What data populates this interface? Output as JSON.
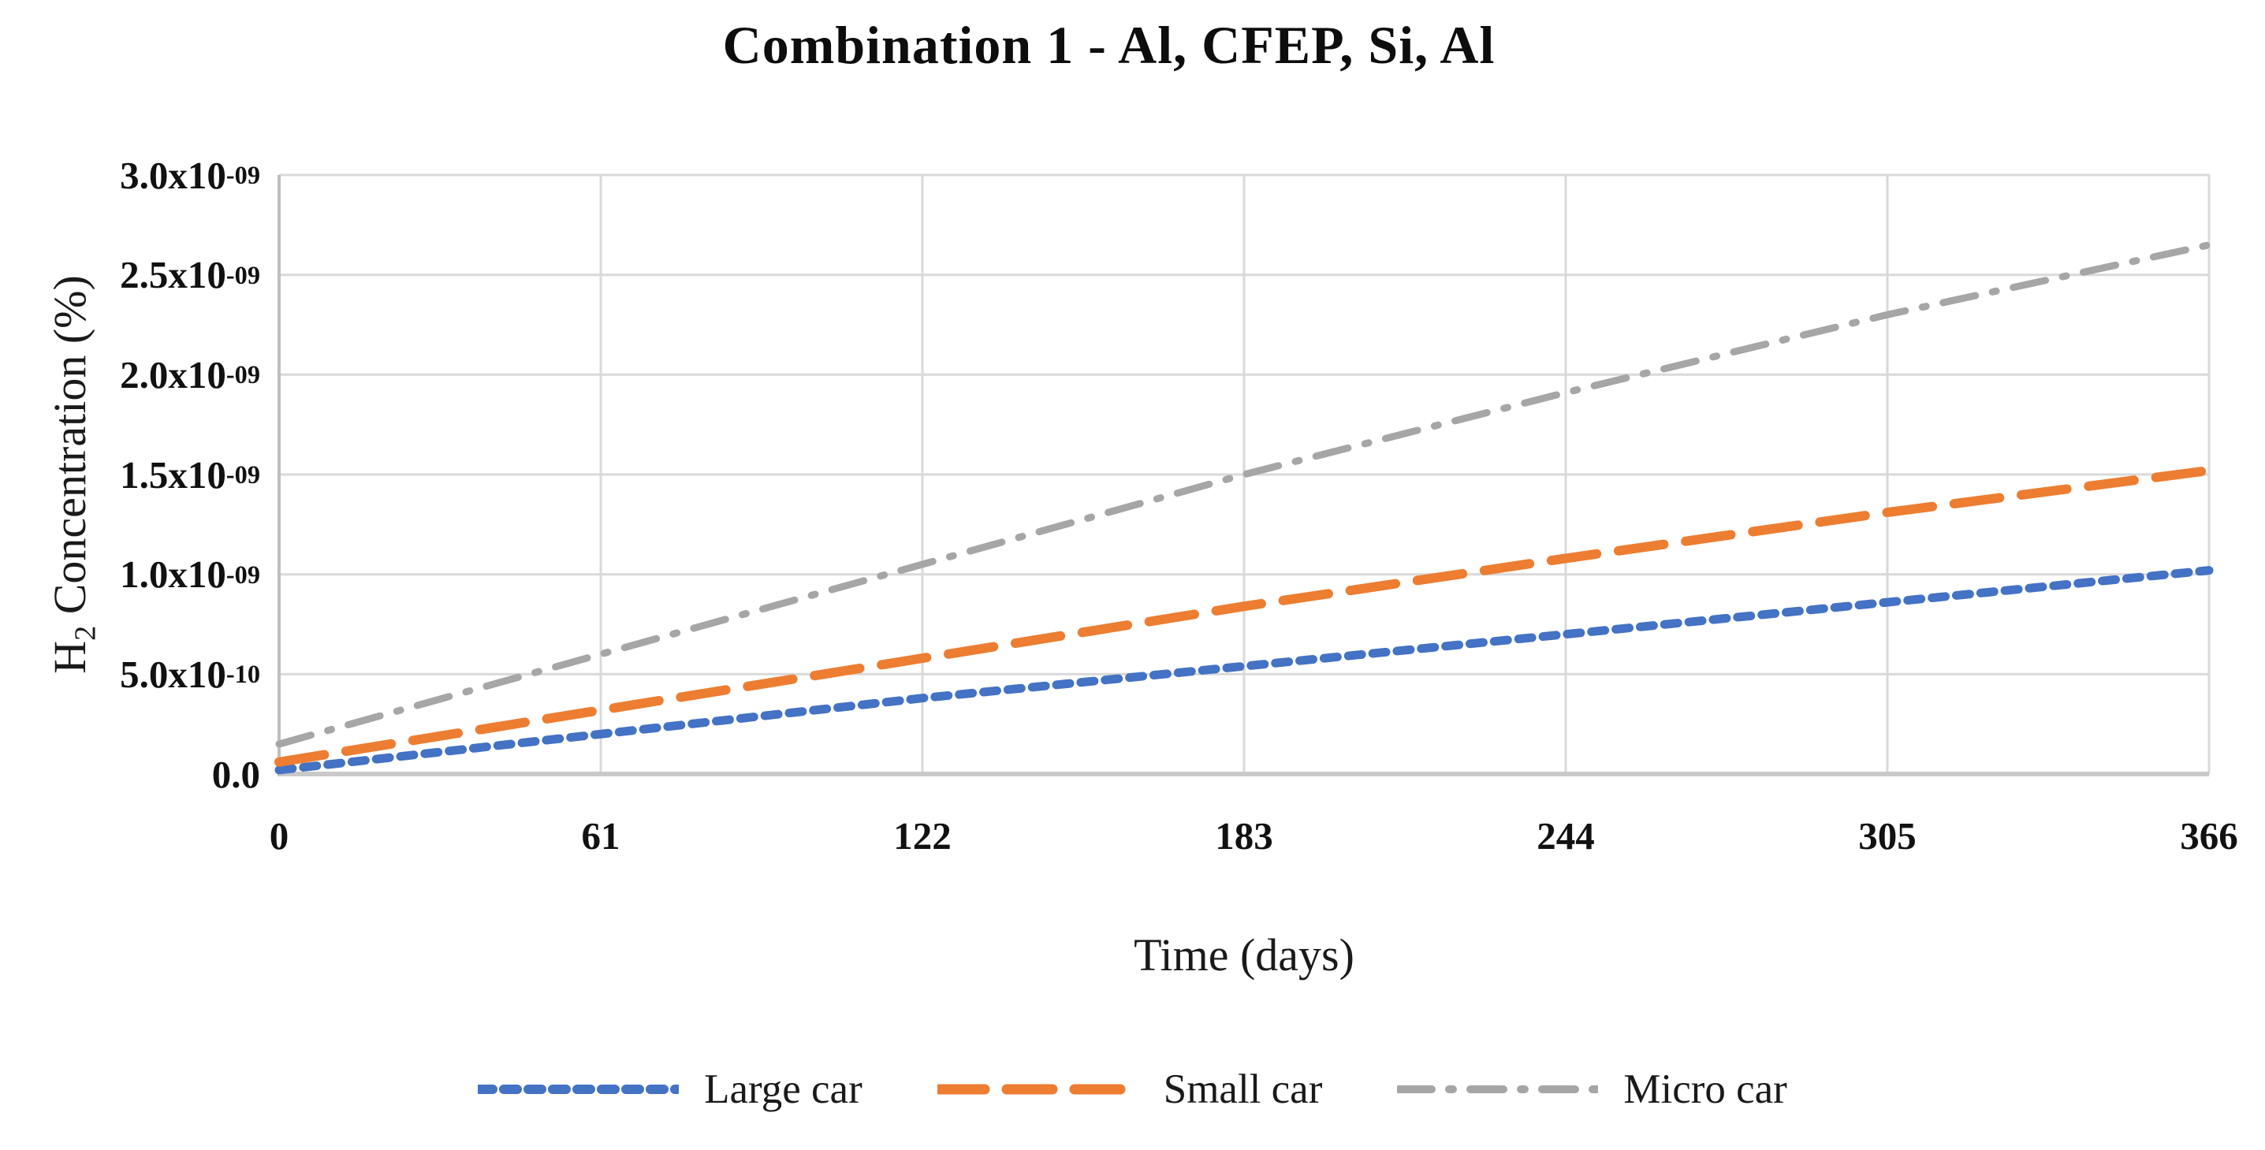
{
  "chart_data": {
    "type": "line",
    "title": "Combination 1 - Al, CFEP, Si, Al",
    "xlabel": "Time (days)",
    "ylabel": "H2 Concentration (%)",
    "ylabel_parts": {
      "pre": "H",
      "sub": "2",
      "post": " Concentration (%)"
    },
    "grid": true,
    "legend_position": "bottom-center",
    "xlim": [
      0,
      366
    ],
    "ylim": [
      0,
      3e-09
    ],
    "x_ticks": [
      0,
      61,
      122,
      183,
      244,
      305,
      366
    ],
    "y_ticks": [
      {
        "value": 3e-09,
        "label": "3.0x10^-09"
      },
      {
        "value": 2.5e-09,
        "label": "2.5x10^-09"
      },
      {
        "value": 2e-09,
        "label": "2.0x10^-09"
      },
      {
        "value": 1.5e-09,
        "label": "1.5x10^-09"
      },
      {
        "value": 1e-09,
        "label": "1.0x10^-09"
      },
      {
        "value": 5e-10,
        "label": "5.0x10^-10"
      },
      {
        "value": 0,
        "label": "0.0"
      }
    ],
    "x": [
      0,
      61,
      122,
      183,
      244,
      305,
      366
    ],
    "series": [
      {
        "name": "Large car",
        "color": "#4472C4",
        "dash_style": "short-dash",
        "values": [
          2e-11,
          2e-10,
          3.8e-10,
          5.4e-10,
          7e-10,
          8.6e-10,
          1.02e-09
        ]
      },
      {
        "name": "Small car",
        "color": "#ED7D31",
        "dash_style": "long-dash",
        "values": [
          6e-11,
          3.2e-10,
          5.8e-10,
          8.4e-10,
          1.08e-09,
          1.31e-09,
          1.52e-09
        ]
      },
      {
        "name": "Micro car",
        "color": "#A6A6A6",
        "dash_style": "dash-dot",
        "values": [
          1.5e-10,
          6e-10,
          1.05e-09,
          1.5e-09,
          1.91e-09,
          2.3e-09,
          2.65e-09
        ]
      }
    ],
    "colors": {
      "gridline": "#D9D9D9",
      "axis_line_left": "#BFBFBF",
      "axis_line_bottom": "#C9C9C9",
      "text": "#1a1a1a"
    }
  }
}
